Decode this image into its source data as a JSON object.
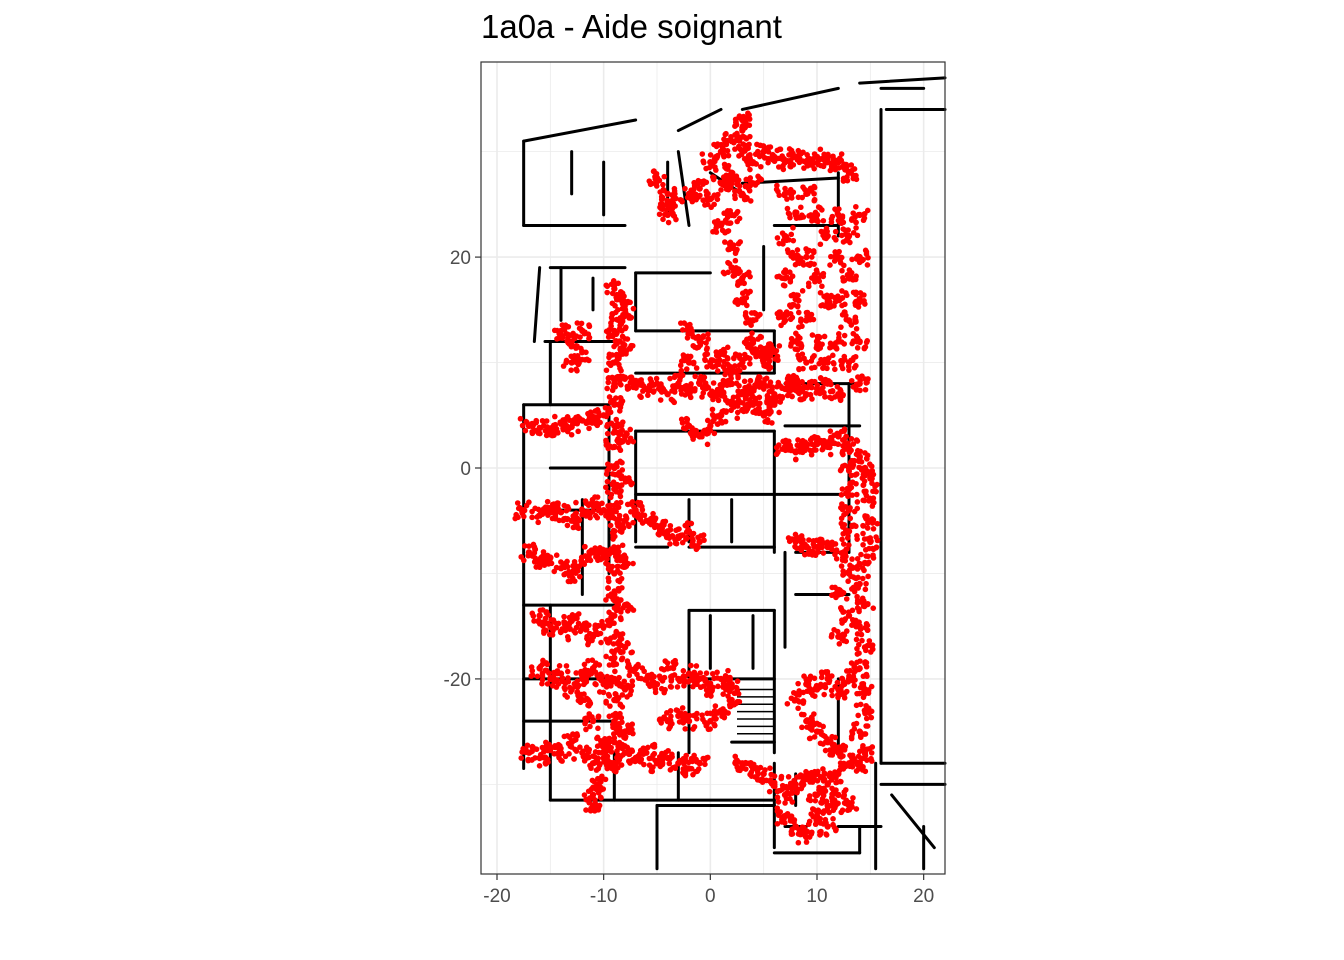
{
  "title": "1a0a - Aide soignant",
  "chart_data": {
    "type": "scatter",
    "title": "1a0a - Aide soignant",
    "xlabel": "",
    "ylabel": "",
    "xlim": [
      -21.5,
      22
    ],
    "ylim": [
      -38.5,
      38.5
    ],
    "x_ticks": [
      -20,
      -10,
      0,
      10,
      20
    ],
    "y_ticks": [
      -20,
      0,
      20
    ],
    "grid": true,
    "legend": "none",
    "point_color": "#ff0000",
    "wall_color": "#000000",
    "series": [
      {
        "values_description_only_for_layout": "",
        "points_sampled": [
          [
            -17,
            4.0
          ],
          [
            -16,
            3.8
          ],
          [
            -15,
            3.5
          ],
          [
            -14,
            4.2
          ],
          [
            -13,
            3.9
          ],
          [
            -12,
            4.5
          ],
          [
            -11,
            4.8
          ],
          [
            -10,
            5.0
          ],
          [
            -17.5,
            -4
          ],
          [
            -16,
            -4.5
          ],
          [
            -15,
            -3.8
          ],
          [
            -14,
            -4.2
          ],
          [
            -13,
            -5
          ],
          [
            -12,
            -4
          ],
          [
            -11,
            -3.5
          ],
          [
            -10,
            -4
          ],
          [
            -17,
            -8
          ],
          [
            -16,
            -9
          ],
          [
            -15,
            -8.5
          ],
          [
            -14,
            -9.5
          ],
          [
            -13,
            -10
          ],
          [
            -12,
            -9
          ],
          [
            -11,
            -8
          ],
          [
            -10,
            -8.5
          ],
          [
            -16,
            -14
          ],
          [
            -15,
            -15
          ],
          [
            -14,
            -15.5
          ],
          [
            -13,
            -14.5
          ],
          [
            -12,
            -15
          ],
          [
            -11,
            -16
          ],
          [
            -10,
            -15
          ],
          [
            -16,
            -19
          ],
          [
            -15,
            -20
          ],
          [
            -14,
            -19.5
          ],
          [
            -13,
            -21
          ],
          [
            -12,
            -20
          ],
          [
            -11,
            -19
          ],
          [
            -10,
            -20.5
          ],
          [
            -17,
            -27
          ],
          [
            -16,
            -27.5
          ],
          [
            -15,
            -26.5
          ],
          [
            -14,
            -27
          ],
          [
            -13,
            -26
          ],
          [
            -12,
            -27
          ],
          [
            -11,
            -28
          ],
          [
            -10,
            -27.5
          ],
          [
            -9,
            -28
          ],
          [
            -8,
            -27
          ],
          [
            -7,
            -27.5
          ],
          [
            -6,
            -27
          ],
          [
            -5,
            -28
          ],
          [
            -4,
            -27.5
          ],
          [
            -3,
            -28
          ],
          [
            -2,
            -28.5
          ],
          [
            -1,
            -28
          ],
          [
            -11,
            -31
          ],
          [
            -11,
            -32
          ],
          [
            -10.5,
            -30
          ],
          [
            -9,
            8
          ],
          [
            -9,
            6
          ],
          [
            -9,
            4
          ],
          [
            -9,
            2
          ],
          [
            -9,
            0
          ],
          [
            -9,
            -2
          ],
          [
            -9,
            -4
          ],
          [
            -9,
            -6
          ],
          [
            -9,
            -8
          ],
          [
            -9,
            -10
          ],
          [
            -9,
            -12
          ],
          [
            -9,
            -14
          ],
          [
            -9,
            -16
          ],
          [
            -9,
            -18
          ],
          [
            -9,
            -20
          ],
          [
            -9,
            -22
          ],
          [
            -9,
            -24
          ],
          [
            -9,
            -26
          ],
          [
            -8,
            3
          ],
          [
            -8,
            -1
          ],
          [
            -8,
            -5
          ],
          [
            -8,
            -9
          ],
          [
            -8,
            -13
          ],
          [
            -8,
            -17
          ],
          [
            -8,
            -21
          ],
          [
            -8,
            -25
          ],
          [
            -7,
            -4
          ],
          [
            -6,
            -5
          ],
          [
            -5,
            -5.5
          ],
          [
            -4,
            -6
          ],
          [
            -3,
            -6.5
          ],
          [
            -2,
            -6
          ],
          [
            -1,
            -7
          ],
          [
            -7,
            -19
          ],
          [
            -6,
            -20
          ],
          [
            -5,
            -20.5
          ],
          [
            -4,
            -19
          ],
          [
            -3,
            -20
          ],
          [
            -2,
            -19.5
          ],
          [
            -1,
            -20
          ],
          [
            0,
            -21
          ],
          [
            1,
            -20
          ],
          [
            2,
            -20.5
          ],
          [
            -4,
            -24
          ],
          [
            -3,
            -23.5
          ],
          [
            -2,
            -24
          ],
          [
            0,
            -24
          ],
          [
            1,
            -23
          ],
          [
            2,
            -22
          ],
          [
            -14,
            13
          ],
          [
            -13,
            12
          ],
          [
            -12,
            11
          ],
          [
            -12,
            13
          ],
          [
            -13,
            10
          ],
          [
            -8,
            8.5
          ],
          [
            -7,
            8
          ],
          [
            -6,
            7.5
          ],
          [
            -5,
            8
          ],
          [
            -4,
            7
          ],
          [
            -3,
            8
          ],
          [
            -2,
            7.5
          ],
          [
            -1,
            8
          ],
          [
            0,
            7
          ],
          [
            1,
            7.5
          ],
          [
            2,
            8
          ],
          [
            3,
            7
          ],
          [
            4,
            7.5
          ],
          [
            5,
            8
          ],
          [
            6,
            7
          ],
          [
            7,
            7.5
          ],
          [
            8,
            8
          ],
          [
            9,
            7
          ],
          [
            10,
            7.5
          ],
          [
            11,
            8
          ],
          [
            12,
            7
          ],
          [
            -2,
            13
          ],
          [
            -1,
            12
          ],
          [
            -2,
            10
          ],
          [
            0,
            10
          ],
          [
            1,
            11
          ],
          [
            2,
            9.5
          ],
          [
            3,
            10
          ],
          [
            4,
            11
          ],
          [
            5,
            10
          ],
          [
            6,
            11
          ],
          [
            -2,
            4
          ],
          [
            -1,
            3
          ],
          [
            0,
            4
          ],
          [
            1,
            5
          ],
          [
            2,
            6
          ],
          [
            3,
            5.5
          ],
          [
            4,
            6
          ],
          [
            5,
            5
          ],
          [
            6,
            6
          ],
          [
            7,
            26
          ],
          [
            8,
            24
          ],
          [
            7,
            22
          ],
          [
            8,
            20
          ],
          [
            7,
            18
          ],
          [
            8,
            16
          ],
          [
            7,
            14
          ],
          [
            8,
            12
          ],
          [
            9,
            10
          ],
          [
            8,
            8
          ],
          [
            9,
            26
          ],
          [
            10,
            24
          ],
          [
            11,
            22
          ],
          [
            9,
            20
          ],
          [
            10,
            18
          ],
          [
            11,
            16
          ],
          [
            9,
            14
          ],
          [
            10,
            12
          ],
          [
            11,
            10
          ],
          [
            12,
            24
          ],
          [
            13,
            22
          ],
          [
            12,
            20
          ],
          [
            13,
            18
          ],
          [
            12,
            16
          ],
          [
            13,
            14
          ],
          [
            12,
            12
          ],
          [
            13,
            10
          ],
          [
            14,
            8
          ],
          [
            14,
            24
          ],
          [
            14,
            20
          ],
          [
            14,
            16
          ],
          [
            14,
            12
          ],
          [
            0,
            29
          ],
          [
            1,
            30
          ],
          [
            2,
            31
          ],
          [
            3,
            30
          ],
          [
            4,
            29
          ],
          [
            5,
            30
          ],
          [
            6,
            29.5
          ],
          [
            7,
            29
          ],
          [
            8,
            29.5
          ],
          [
            9,
            29
          ],
          [
            10,
            29.5
          ],
          [
            11,
            29
          ],
          [
            12,
            29
          ],
          [
            13,
            28
          ],
          [
            -2,
            26
          ],
          [
            -1,
            26.5
          ],
          [
            0,
            25.5
          ],
          [
            1,
            27
          ],
          [
            2,
            28
          ],
          [
            3,
            32
          ],
          [
            3,
            33
          ],
          [
            2,
            27
          ],
          [
            4,
            27
          ],
          [
            1,
            23
          ],
          [
            2,
            21
          ],
          [
            2,
            19
          ],
          [
            3,
            18
          ],
          [
            3,
            16
          ],
          [
            4,
            14
          ],
          [
            4,
            12
          ],
          [
            5,
            11
          ],
          [
            2,
            24
          ],
          [
            3,
            26
          ],
          [
            -9,
            17
          ],
          [
            -8.5,
            16
          ],
          [
            -8,
            15
          ],
          [
            -8.5,
            14
          ],
          [
            -9,
            13
          ],
          [
            -8.5,
            12
          ],
          [
            -8,
            11
          ],
          [
            -9,
            10
          ],
          [
            -9,
            -28
          ],
          [
            -10,
            -26
          ],
          [
            -11,
            -24
          ],
          [
            -12,
            -22
          ],
          [
            7,
            2
          ],
          [
            8,
            1.5
          ],
          [
            9,
            2
          ],
          [
            10,
            2.5
          ],
          [
            11,
            2
          ],
          [
            12,
            3
          ],
          [
            13,
            2
          ],
          [
            14,
            1
          ],
          [
            14.5,
            0
          ],
          [
            15,
            -1
          ],
          [
            15,
            -3
          ],
          [
            15,
            -5
          ],
          [
            15,
            -7
          ],
          [
            14.5,
            -9
          ],
          [
            14,
            -11
          ],
          [
            14.5,
            -13
          ],
          [
            14,
            -15
          ],
          [
            14.5,
            -17
          ],
          [
            14,
            -19
          ],
          [
            14.5,
            -21
          ],
          [
            14.5,
            -23
          ],
          [
            14,
            -25
          ],
          [
            14.5,
            -27
          ],
          [
            14,
            -28
          ],
          [
            13,
            0
          ],
          [
            13,
            -2
          ],
          [
            13,
            -4
          ],
          [
            13,
            -6
          ],
          [
            12.5,
            -8
          ],
          [
            13,
            -10
          ],
          [
            12,
            -12
          ],
          [
            13,
            -14
          ],
          [
            12,
            -16
          ],
          [
            11,
            -20
          ],
          [
            12,
            -21
          ],
          [
            13,
            -20
          ],
          [
            10,
            -21
          ],
          [
            9,
            -20.5
          ],
          [
            8,
            -22
          ],
          [
            9,
            -24
          ],
          [
            10,
            -25
          ],
          [
            11,
            -26
          ],
          [
            12,
            -27
          ],
          [
            13,
            -28
          ],
          [
            12,
            -29
          ],
          [
            11,
            -30
          ],
          [
            10,
            -29
          ],
          [
            9,
            -29.5
          ],
          [
            8,
            -30
          ],
          [
            7,
            -31
          ],
          [
            10,
            -31
          ],
          [
            11,
            -32
          ],
          [
            12,
            -31
          ],
          [
            13,
            -32
          ],
          [
            6,
            -30
          ],
          [
            5,
            -29
          ],
          [
            4,
            -28.5
          ],
          [
            3,
            -28
          ],
          [
            8,
            -7
          ],
          [
            9,
            -7.5
          ],
          [
            10,
            -7.5
          ],
          [
            11,
            -7.5
          ],
          [
            7,
            -33
          ],
          [
            8,
            -34
          ],
          [
            9,
            -35
          ],
          [
            10,
            -33
          ],
          [
            11,
            -34
          ],
          [
            -5,
            27.5
          ],
          [
            -4,
            26
          ],
          [
            -4,
            25
          ],
          [
            -4,
            24
          ]
        ],
        "name": ""
      }
    ]
  }
}
